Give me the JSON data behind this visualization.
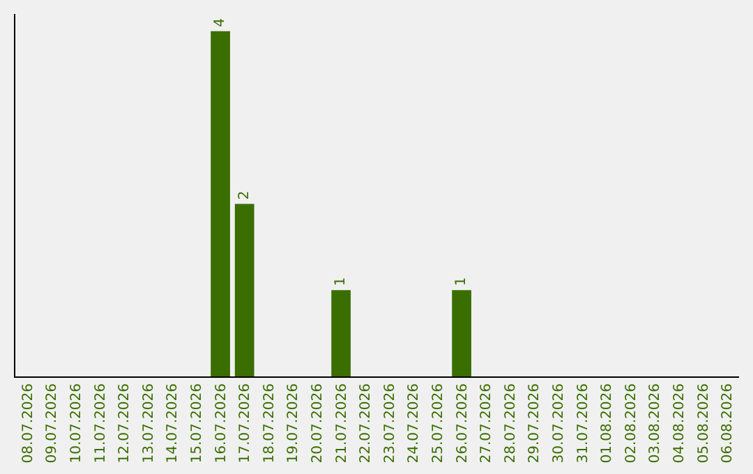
{
  "chart_data": {
    "type": "bar",
    "categories": [
      "08.07.2026",
      "09.07.2026",
      "10.07.2026",
      "11.07.2026",
      "12.07.2026",
      "13.07.2026",
      "14.07.2026",
      "15.07.2026",
      "16.07.2026",
      "17.07.2026",
      "18.07.2026",
      "19.07.2026",
      "20.07.2026",
      "21.07.2026",
      "22.07.2026",
      "23.07.2026",
      "24.07.2026",
      "25.07.2026",
      "26.07.2026",
      "27.07.2026",
      "28.07.2026",
      "29.07.2026",
      "30.07.2026",
      "31.07.2026",
      "01.08.2026",
      "02.08.2026",
      "03.08.2026",
      "04.08.2026",
      "05.08.2026",
      "06.08.2026"
    ],
    "values": [
      0,
      0,
      0,
      0,
      0,
      0,
      0,
      0,
      4,
      2,
      0,
      0,
      0,
      1,
      0,
      0,
      0,
      0,
      1,
      0,
      0,
      0,
      0,
      0,
      0,
      0,
      0,
      0,
      0,
      0
    ],
    "value_labels": [
      null,
      null,
      null,
      null,
      null,
      null,
      null,
      null,
      "4",
      "2",
      null,
      null,
      null,
      "1",
      null,
      null,
      null,
      null,
      "1",
      null,
      null,
      null,
      null,
      null,
      null,
      null,
      null,
      null,
      null,
      null
    ],
    "color": "#3a6e00",
    "ylim": [
      0,
      4.2
    ],
    "tick_labels": "x"
  }
}
